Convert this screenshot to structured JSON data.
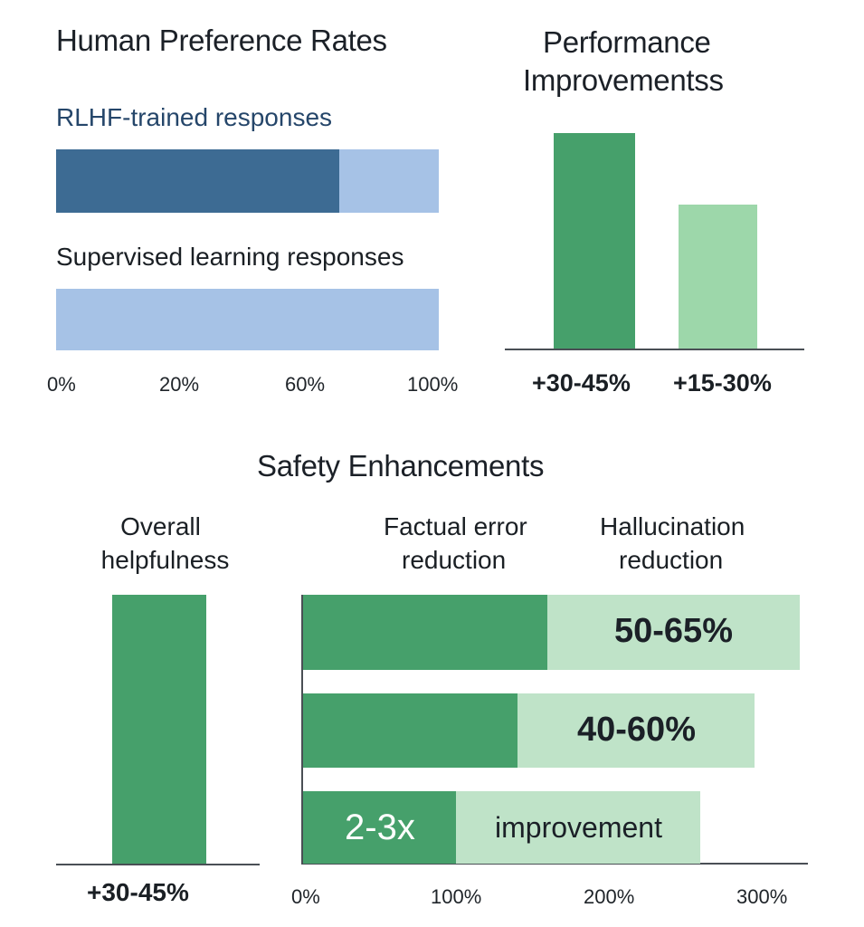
{
  "colors": {
    "dark_blue": "#3d6b93",
    "light_blue": "#a6c2e6",
    "dark_green": "#46a06b",
    "mid_green": "#9dd7aa",
    "light_green": "#bfe3c8",
    "text_dark": "#1b2027",
    "text_navy": "#25466a"
  },
  "chart_data": [
    {
      "type": "bar",
      "orientation": "horizontal",
      "title": "Human Preference Rates",
      "series": [
        {
          "name": "RLHF-trained responses",
          "value": 74,
          "total": 100
        },
        {
          "name": "Supervised learning responses",
          "value": 0,
          "total": 100
        }
      ],
      "tick_labels": [
        "0%",
        "20%",
        "60%",
        "100%"
      ],
      "xlim": [
        0,
        100
      ]
    },
    {
      "type": "bar",
      "orientation": "vertical",
      "title_lines": [
        "Performance",
        "Improvementss"
      ],
      "categories": [
        "+30-45%",
        "+15-30%"
      ],
      "values": [
        45,
        30
      ]
    },
    {
      "type": "bar",
      "title": "Safety Enhancements",
      "helpfulness": {
        "label_lines": [
          "Overall",
          "helpfulness"
        ],
        "value_label": "+30-45%",
        "value": 45
      },
      "column_labels": {
        "factual": [
          "Factual error",
          "reduction"
        ],
        "hallucination": [
          "Hallucination",
          "reduction"
        ]
      },
      "rows": [
        {
          "dark": 160,
          "total": 325,
          "label": "50-65%"
        },
        {
          "dark": 140,
          "total": 295,
          "label": "40-60%"
        },
        {
          "dark": 100,
          "total": 260,
          "dark_label": "2-3x",
          "label": "improvement"
        }
      ],
      "xlim": [
        0,
        325
      ],
      "tick_values": [
        0,
        100,
        200,
        300
      ],
      "tick_labels": [
        "0%",
        "100%",
        "200%",
        "300%"
      ]
    }
  ]
}
